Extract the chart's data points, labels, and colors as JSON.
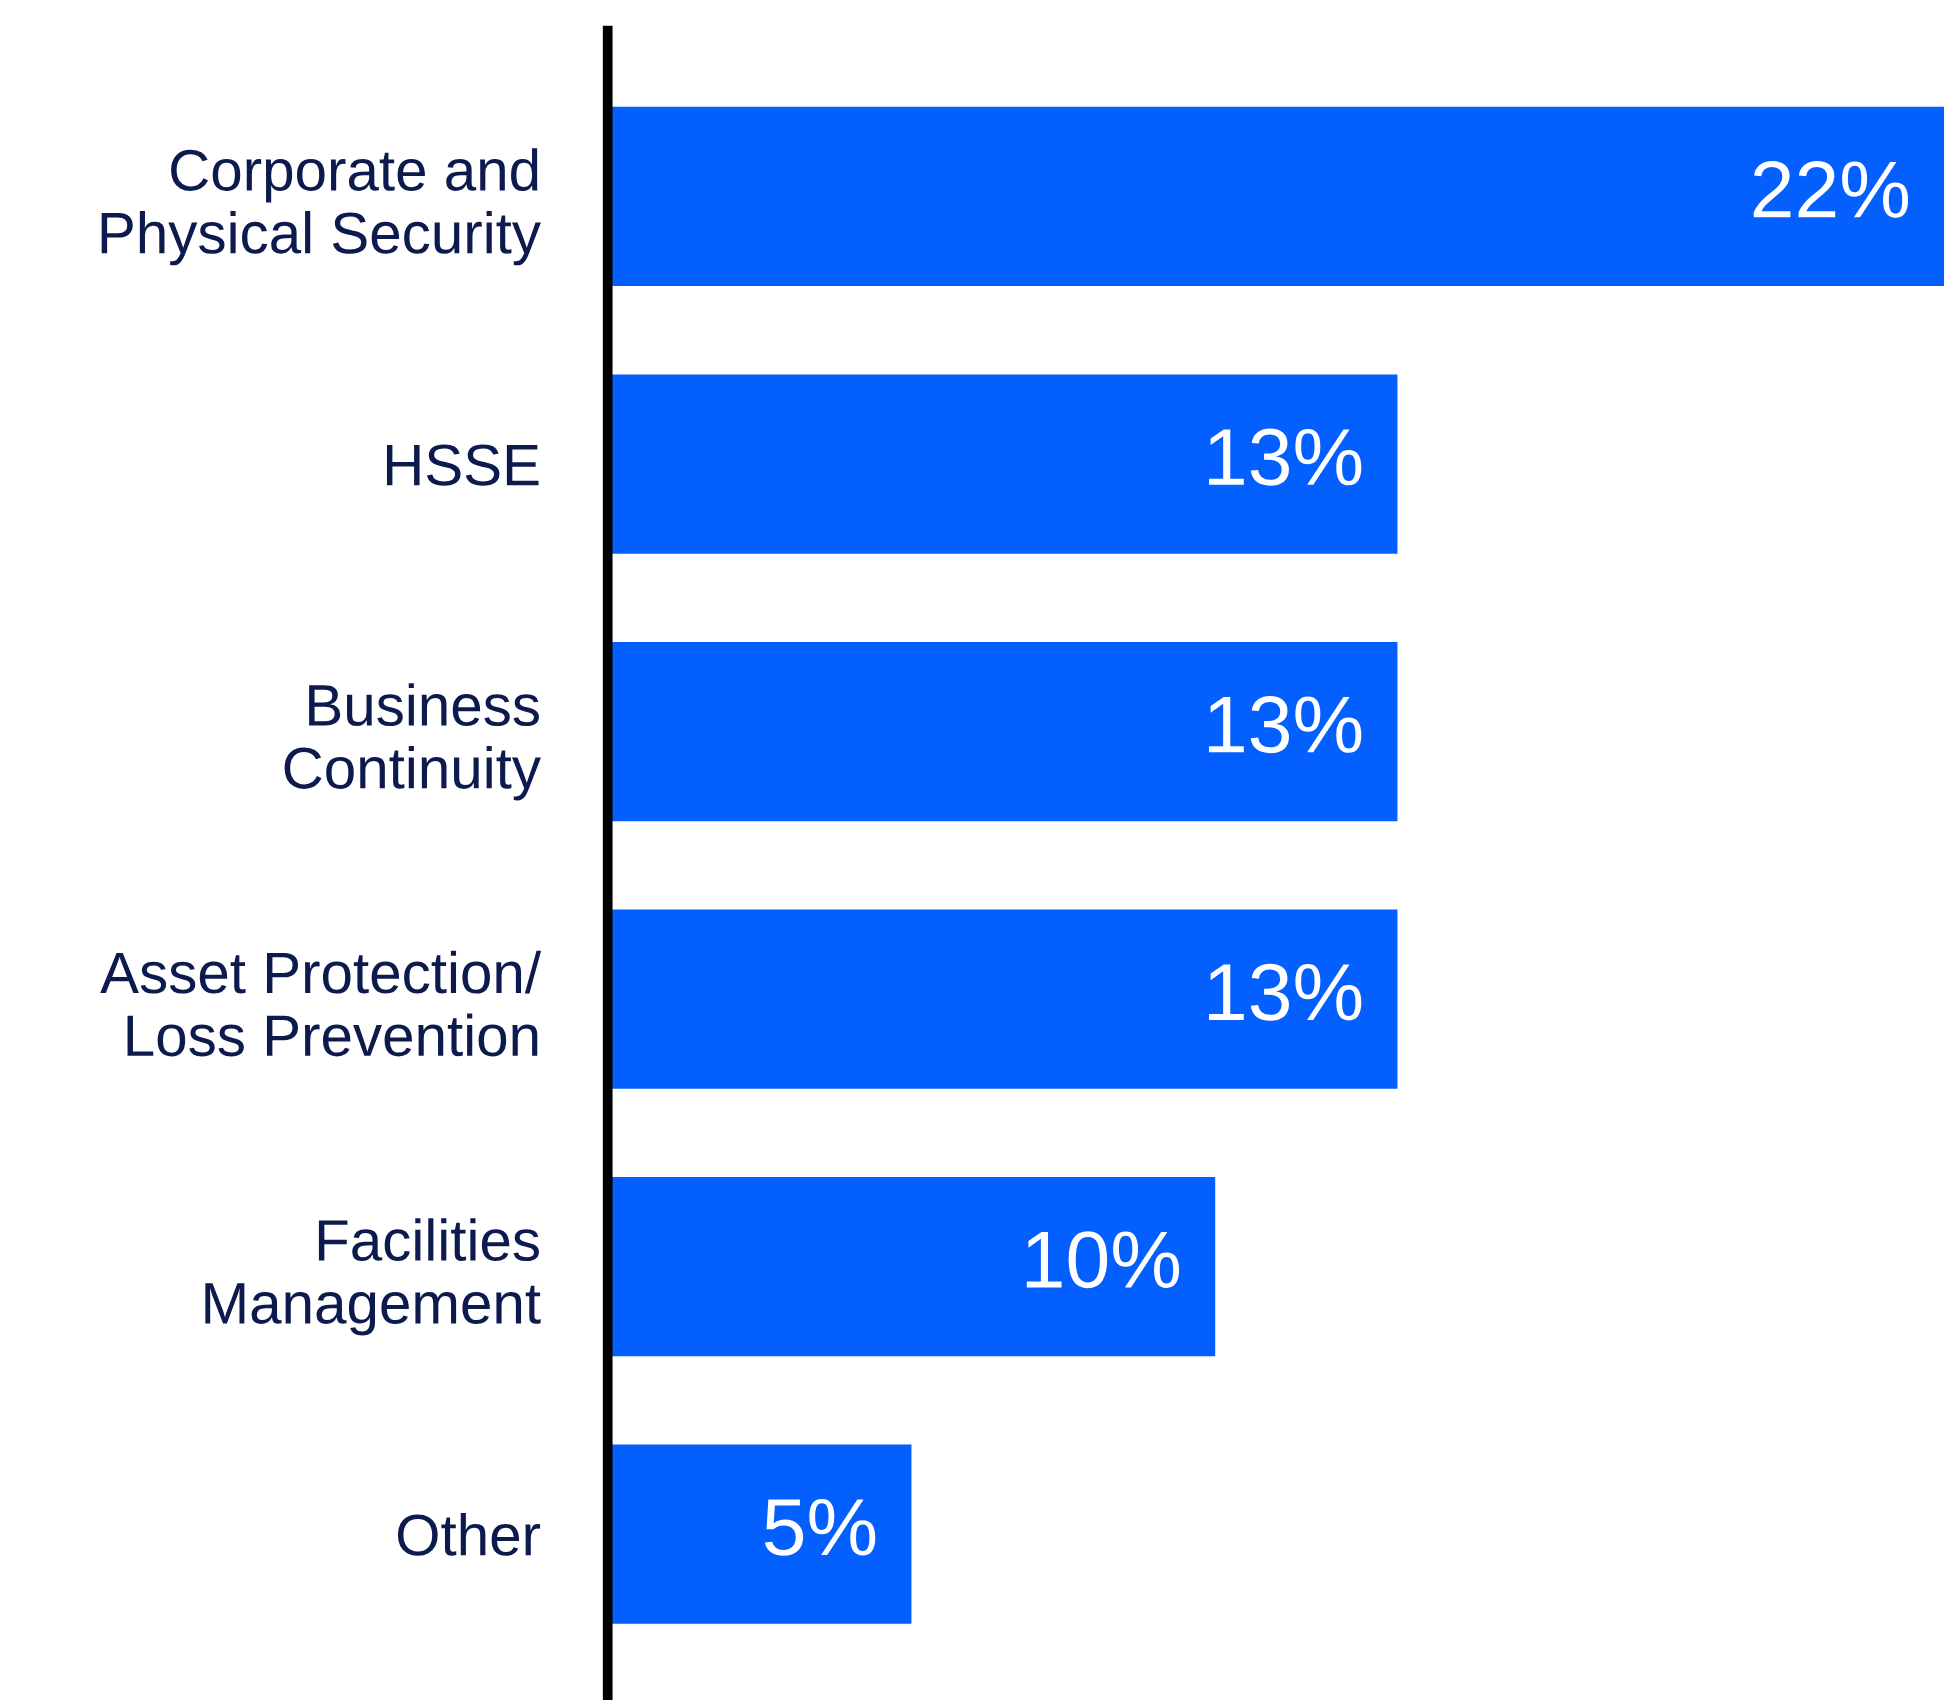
{
  "chart_data": {
    "type": "bar",
    "orientation": "horizontal",
    "categories": [
      "Corporate and\nPhysical Security",
      "HSSE",
      "Business\nContinuity",
      "Asset Protection/\nLoss Prevention",
      "Facilities\nManagement",
      "Other"
    ],
    "values": [
      22,
      13,
      13,
      13,
      10,
      5
    ],
    "value_labels": [
      "22%",
      "13%",
      "13%",
      "13%",
      "10%",
      "5%"
    ],
    "color": "#035ffe",
    "grid": false,
    "legend": false
  }
}
